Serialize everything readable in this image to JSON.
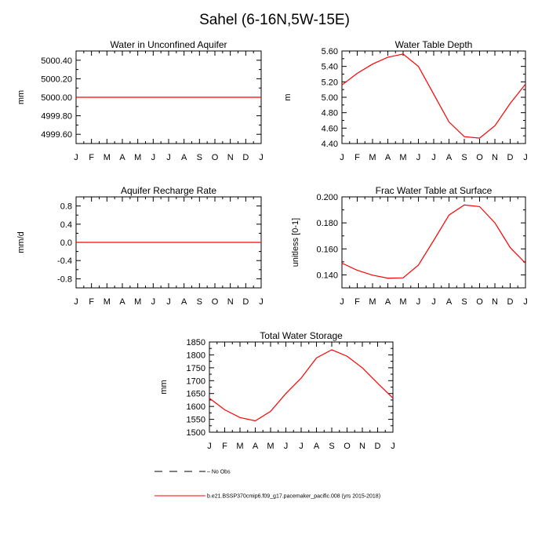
{
  "page_title": "Sahel (6-16N,5W-15E)",
  "legend": {
    "obs_label": "No Obs",
    "model_label": "b.e21.BSSP370cmip6.f09_g17.pacemaker_pacific.008 (yrs 2015-2018)"
  },
  "colors": {
    "model": "#ff0000",
    "axes": "#000000",
    "obs": "#000000"
  },
  "chart_data": [
    {
      "type": "line",
      "title": "Water in Unconfined Aquifer",
      "xlabel": "",
      "ylabel": "mm",
      "categories": [
        "J",
        "F",
        "M",
        "A",
        "M",
        "J",
        "J",
        "A",
        "S",
        "O",
        "N",
        "D",
        "J"
      ],
      "ylim": [
        4999.5,
        5000.5
      ],
      "yticks": [
        4999.6,
        4999.8,
        5000.0,
        5000.2,
        5000.4
      ],
      "ytick_labels": [
        "4999.60",
        "4999.80",
        "5000.00",
        "5000.20",
        "5000.40"
      ],
      "series": [
        {
          "name": "model",
          "values": [
            5000,
            5000,
            5000,
            5000,
            5000,
            5000,
            5000,
            5000,
            5000,
            5000,
            5000,
            5000,
            5000
          ]
        }
      ]
    },
    {
      "type": "line",
      "title": "Water Table Depth",
      "xlabel": "",
      "ylabel": "m",
      "categories": [
        "J",
        "F",
        "M",
        "A",
        "M",
        "J",
        "J",
        "A",
        "S",
        "O",
        "N",
        "D",
        "J"
      ],
      "ylim": [
        4.4,
        5.6
      ],
      "yticks": [
        4.4,
        4.6,
        4.8,
        5.0,
        5.2,
        5.4,
        5.6
      ],
      "ytick_labels": [
        "4.40",
        "4.60",
        "4.80",
        "5.00",
        "5.20",
        "5.40",
        "5.60"
      ],
      "series": [
        {
          "name": "model",
          "values": [
            5.16,
            5.31,
            5.43,
            5.52,
            5.56,
            5.4,
            5.04,
            4.68,
            4.49,
            4.47,
            4.63,
            4.92,
            5.17
          ]
        }
      ]
    },
    {
      "type": "line",
      "title": "Aquifer Recharge Rate",
      "xlabel": "",
      "ylabel": "mm/d",
      "categories": [
        "J",
        "F",
        "M",
        "A",
        "M",
        "J",
        "J",
        "A",
        "S",
        "O",
        "N",
        "D",
        "J"
      ],
      "ylim": [
        -1.0,
        1.0
      ],
      "yticks": [
        -0.8,
        -0.4,
        0.0,
        0.4,
        0.8
      ],
      "ytick_labels": [
        "-0.8",
        "-0.4",
        "0.0",
        "0.4",
        "0.8"
      ],
      "series": [
        {
          "name": "model",
          "values": [
            0,
            0,
            0,
            0,
            0,
            0,
            0,
            0,
            0,
            0,
            0,
            0,
            0
          ]
        }
      ]
    },
    {
      "type": "line",
      "title": "Frac Water Table at Surface",
      "xlabel": "",
      "ylabel": "unitless [0-1]",
      "categories": [
        "J",
        "F",
        "M",
        "A",
        "M",
        "J",
        "J",
        "A",
        "S",
        "O",
        "N",
        "D",
        "J"
      ],
      "ylim": [
        0.13,
        0.2
      ],
      "yticks": [
        0.14,
        0.16,
        0.18,
        0.2
      ],
      "ytick_labels": [
        "0.140",
        "0.160",
        "0.180",
        "0.200"
      ],
      "series": [
        {
          "name": "model",
          "values": [
            0.149,
            0.1435,
            0.1398,
            0.1375,
            0.1377,
            0.1475,
            0.1665,
            0.186,
            0.1938,
            0.1925,
            0.18,
            0.161,
            0.149
          ]
        }
      ]
    },
    {
      "type": "line",
      "title": "Total Water Storage",
      "xlabel": "",
      "ylabel": "mm",
      "categories": [
        "J",
        "F",
        "M",
        "A",
        "M",
        "J",
        "J",
        "A",
        "S",
        "O",
        "N",
        "D",
        "J"
      ],
      "ylim": [
        1500,
        1850
      ],
      "yticks": [
        1500,
        1550,
        1600,
        1650,
        1700,
        1750,
        1800,
        1850
      ],
      "ytick_labels": [
        "1500",
        "1550",
        "1600",
        "1650",
        "1700",
        "1750",
        "1800",
        "1850"
      ],
      "series": [
        {
          "name": "model",
          "values": [
            1632,
            1587,
            1557,
            1544,
            1581,
            1650,
            1710,
            1788,
            1820,
            1795,
            1750,
            1690,
            1632
          ]
        }
      ]
    }
  ]
}
